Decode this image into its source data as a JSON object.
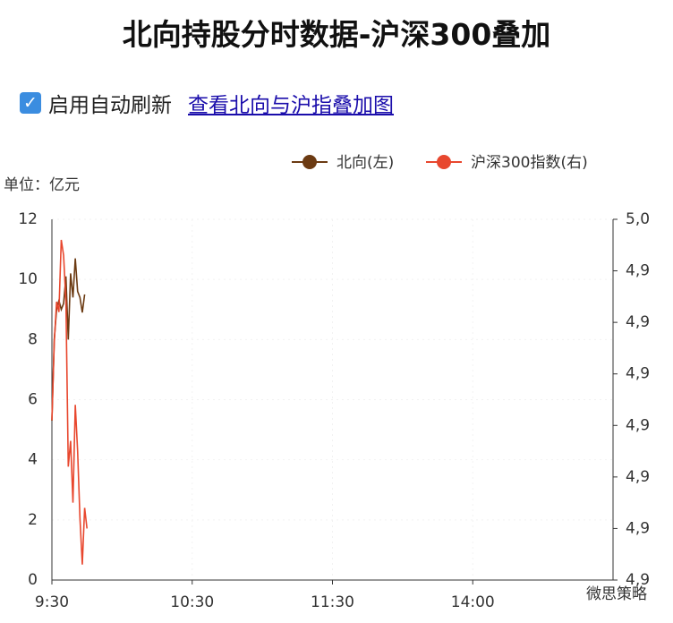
{
  "header": {
    "title": "北向持股分时数据-沪深300叠加",
    "auto_refresh": "启用自动刷新",
    "link": "查看北向与沪指叠加图"
  },
  "chart_data": {
    "type": "line",
    "unit": "单位：亿元",
    "watermark": "微思策略",
    "grid": true,
    "xlim": [
      0,
      240
    ],
    "xticks": [
      {
        "value": 0,
        "label": "9:30"
      },
      {
        "value": 60,
        "label": "10:30"
      },
      {
        "value": 120,
        "label": "11:30"
      },
      {
        "value": 180,
        "label": "14:00"
      }
    ],
    "ylim": [
      0,
      12
    ],
    "yticks": [
      0,
      2,
      4,
      6,
      8,
      10,
      12
    ],
    "y2lim": [
      4930,
      5000
    ],
    "y2ticks": [
      {
        "value": 5000,
        "label": "5,0"
      },
      {
        "value": 4990,
        "label": "4,9"
      },
      {
        "value": 4980,
        "label": "4,9"
      },
      {
        "value": 4970,
        "label": "4,9"
      },
      {
        "value": 4960,
        "label": "4,9"
      },
      {
        "value": 4950,
        "label": "4,9"
      },
      {
        "value": 4940,
        "label": "4,9"
      },
      {
        "value": 4930,
        "label": "4,9"
      }
    ],
    "series": [
      {
        "name": "北向(左)",
        "color": "#6b3a12",
        "x": [
          0,
          1,
          2,
          3,
          4,
          5,
          6,
          7,
          8,
          9,
          10,
          11,
          12,
          13,
          14
        ],
        "values": [
          5.3,
          8.0,
          9.0,
          9.3,
          9.0,
          9.2,
          10.1,
          8.0,
          10.2,
          9.4,
          10.7,
          9.6,
          9.4,
          8.9,
          9.5
        ]
      },
      {
        "name": "沪深300指数(右)",
        "color": "#e8472e",
        "axis": "y2",
        "x": [
          0,
          1,
          2,
          3,
          4,
          5,
          6,
          7,
          8,
          9,
          10,
          11,
          12,
          13,
          14,
          15
        ],
        "values": [
          4961,
          4976,
          4984,
          4982,
          4996,
          4993,
          4984,
          4952,
          4957,
          4945,
          4964,
          4955,
          4942,
          4933,
          4944,
          4940
        ]
      }
    ]
  }
}
